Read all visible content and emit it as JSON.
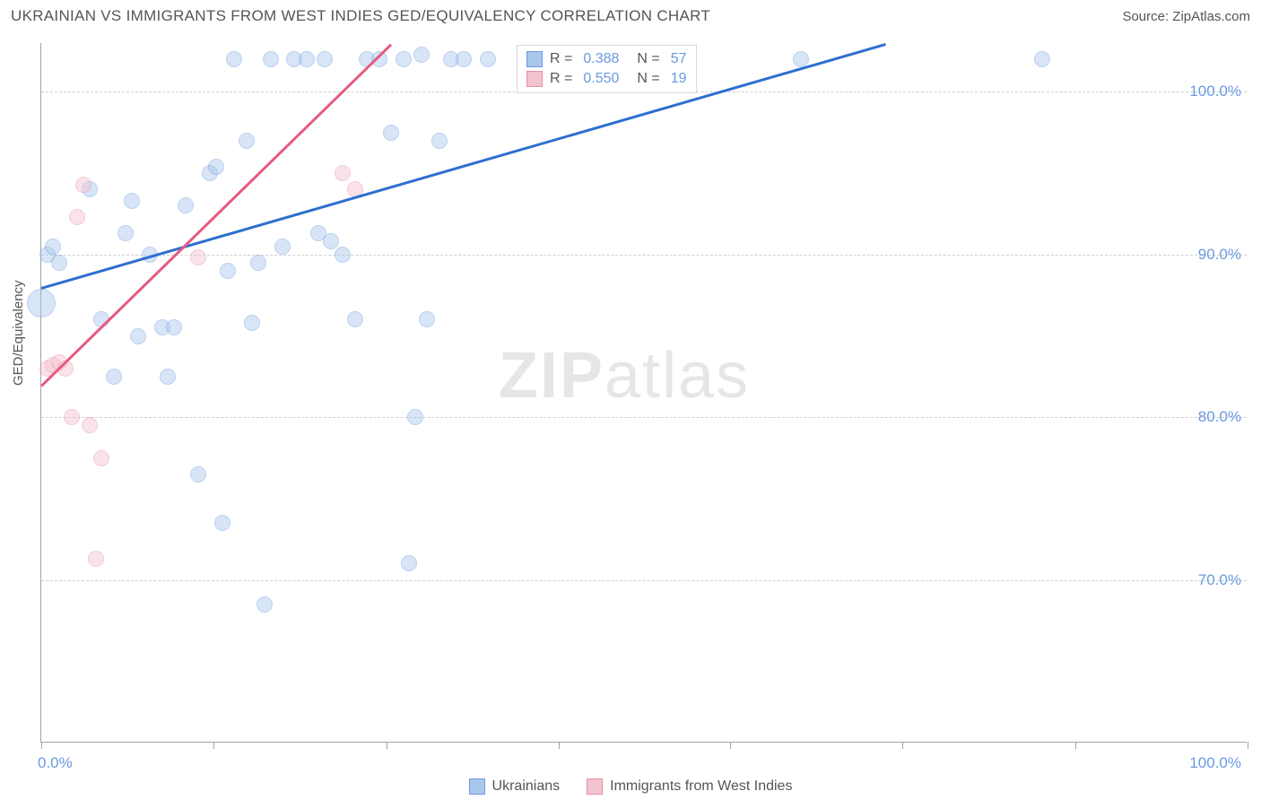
{
  "title": "UKRAINIAN VS IMMIGRANTS FROM WEST INDIES GED/EQUIVALENCY CORRELATION CHART",
  "source": "Source: ZipAtlas.com",
  "ylabel": "GED/Equivalency",
  "watermark": {
    "bold": "ZIP",
    "rest": "atlas"
  },
  "chart": {
    "type": "scatter",
    "background_color": "#ffffff",
    "grid_color": "#d0d0d0",
    "axis_color": "#9ca3af",
    "tick_label_color": "#6a9ae0",
    "title_fontsize": 17,
    "label_fontsize": 15,
    "tick_fontsize": 17,
    "xlim": [
      0,
      100
    ],
    "ylim": [
      60,
      103
    ],
    "x_ticks": [
      0,
      14.3,
      28.6,
      42.9,
      57.1,
      71.4,
      85.7,
      100
    ],
    "x_tick_labels": {
      "first": "0.0%",
      "last": "100.0%"
    },
    "y_gridlines": [
      70,
      80,
      90,
      100
    ],
    "y_tick_labels": [
      "70.0%",
      "80.0%",
      "90.0%",
      "100.0%"
    ],
    "point_radius": 9,
    "point_radius_large": 16,
    "point_opacity": 0.45,
    "series": [
      {
        "name": "Ukrainians",
        "fill_color": "#a9c7ec",
        "stroke_color": "#6a9ae0",
        "line_color": "#2d6fcf",
        "r_value": "0.388",
        "n_value": "57",
        "trend": {
          "x1": 0,
          "y1": 88,
          "x2": 70,
          "y2": 103
        },
        "points": [
          {
            "x": 0,
            "y": 87,
            "r": 16
          },
          {
            "x": 0.5,
            "y": 90
          },
          {
            "x": 1,
            "y": 90.5
          },
          {
            "x": 1.5,
            "y": 89.5
          },
          {
            "x": 4,
            "y": 94
          },
          {
            "x": 5,
            "y": 86
          },
          {
            "x": 6,
            "y": 82.5
          },
          {
            "x": 7,
            "y": 91.3
          },
          {
            "x": 7.5,
            "y": 93.3
          },
          {
            "x": 8,
            "y": 85
          },
          {
            "x": 9,
            "y": 90
          },
          {
            "x": 10,
            "y": 85.5
          },
          {
            "x": 10.5,
            "y": 82.5
          },
          {
            "x": 11,
            "y": 85.5
          },
          {
            "x": 12,
            "y": 93
          },
          {
            "x": 13,
            "y": 76.5
          },
          {
            "x": 14,
            "y": 95
          },
          {
            "x": 14.5,
            "y": 95.4
          },
          {
            "x": 15,
            "y": 73.5
          },
          {
            "x": 15.5,
            "y": 89
          },
          {
            "x": 16,
            "y": 102
          },
          {
            "x": 17,
            "y": 97
          },
          {
            "x": 17.5,
            "y": 85.8
          },
          {
            "x": 18,
            "y": 89.5
          },
          {
            "x": 18.5,
            "y": 68.5
          },
          {
            "x": 19,
            "y": 102
          },
          {
            "x": 20,
            "y": 90.5
          },
          {
            "x": 21,
            "y": 102
          },
          {
            "x": 22,
            "y": 102
          },
          {
            "x": 23,
            "y": 91.3
          },
          {
            "x": 23.5,
            "y": 102
          },
          {
            "x": 24,
            "y": 90.8
          },
          {
            "x": 25,
            "y": 90
          },
          {
            "x": 26,
            "y": 86
          },
          {
            "x": 27,
            "y": 102
          },
          {
            "x": 28,
            "y": 102
          },
          {
            "x": 29,
            "y": 97.5
          },
          {
            "x": 30,
            "y": 102
          },
          {
            "x": 30.5,
            "y": 71
          },
          {
            "x": 31,
            "y": 80
          },
          {
            "x": 31.5,
            "y": 102.3
          },
          {
            "x": 32,
            "y": 86
          },
          {
            "x": 33,
            "y": 97
          },
          {
            "x": 34,
            "y": 102
          },
          {
            "x": 35,
            "y": 102
          },
          {
            "x": 37,
            "y": 102
          },
          {
            "x": 63,
            "y": 102
          },
          {
            "x": 83,
            "y": 102
          }
        ]
      },
      {
        "name": "Immigrants from West Indies",
        "fill_color": "#f3c3ce",
        "stroke_color": "#e78fa5",
        "line_color": "#e65a7f",
        "r_value": "0.550",
        "n_value": "19",
        "trend": {
          "x1": 0,
          "y1": 82,
          "x2": 29,
          "y2": 103
        },
        "points": [
          {
            "x": 0.5,
            "y": 83
          },
          {
            "x": 1,
            "y": 83.2
          },
          {
            "x": 1.5,
            "y": 83.4
          },
          {
            "x": 2,
            "y": 83
          },
          {
            "x": 2.5,
            "y": 80
          },
          {
            "x": 3,
            "y": 92.3
          },
          {
            "x": 3.5,
            "y": 94.3
          },
          {
            "x": 4,
            "y": 79.5
          },
          {
            "x": 4.5,
            "y": 71.3
          },
          {
            "x": 5,
            "y": 77.5
          },
          {
            "x": 13,
            "y": 89.8
          },
          {
            "x": 25,
            "y": 95
          },
          {
            "x": 26,
            "y": 94
          }
        ]
      }
    ]
  },
  "legend_top": {
    "rows": [
      0,
      1
    ]
  },
  "legend_bottom": {
    "items": [
      {
        "series": 0
      },
      {
        "series": 1
      }
    ]
  }
}
